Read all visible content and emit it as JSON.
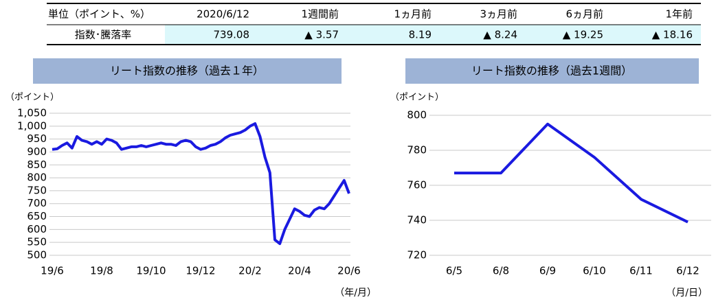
{
  "table": {
    "header": [
      "単位（ポイント、%）",
      "2020/6/12",
      "1週間前",
      "1ヵ月前",
      "3ヵ月前",
      "6ヵ月前",
      "1年前"
    ],
    "rows": [
      [
        "指数･騰落率",
        "739.08",
        "▲ 3.57",
        "8.19",
        "▲ 8.24",
        "▲ 19.25",
        "▲ 18.16"
      ]
    ]
  },
  "chart_data": [
    {
      "type": "line",
      "title": "リート指数の推移（過去１年）",
      "y_label": "（ポイント）",
      "x_label": "（年/月）",
      "color": "#1a1ae0",
      "grid": true,
      "categories": [
        "19/6",
        null,
        null,
        null,
        null,
        null,
        null,
        null,
        null,
        null,
        "19/8",
        null,
        null,
        null,
        null,
        null,
        null,
        null,
        null,
        null,
        "19/10",
        null,
        null,
        null,
        null,
        null,
        null,
        null,
        null,
        null,
        "19/12",
        null,
        null,
        null,
        null,
        null,
        null,
        null,
        null,
        null,
        "20/2",
        null,
        null,
        null,
        null,
        null,
        null,
        null,
        null,
        null,
        "20/4",
        null,
        null,
        null,
        null,
        null,
        null,
        null,
        null,
        null,
        "20/6"
      ],
      "values": [
        910,
        912,
        925,
        935,
        915,
        960,
        945,
        940,
        930,
        940,
        930,
        950,
        945,
        935,
        910,
        915,
        920,
        920,
        925,
        920,
        925,
        930,
        935,
        930,
        930,
        925,
        940,
        945,
        940,
        920,
        910,
        915,
        925,
        930,
        940,
        955,
        965,
        970,
        975,
        985,
        1000,
        1010,
        960,
        880,
        820,
        560,
        545,
        600,
        640,
        680,
        670,
        655,
        650,
        675,
        685,
        680,
        700,
        730,
        760,
        790,
        739
      ],
      "ylim": [
        500,
        1050
      ],
      "yticks": [
        500,
        550,
        600,
        650,
        700,
        750,
        800,
        850,
        900,
        950,
        {
          "value": 1000,
          "label": "1,000"
        },
        {
          "value": 1050,
          "label": "1,050"
        }
      ]
    },
    {
      "type": "line",
      "title": "リート指数の推移（過去1週間）",
      "y_label": "（ポイント）",
      "x_label": "（月/日）",
      "color": "#1a1ae0",
      "grid": true,
      "categories": [
        "6/5",
        "6/8",
        "6/9",
        "6/10",
        "6/11",
        "6/12"
      ],
      "values": [
        767,
        767,
        795,
        776,
        752,
        739
      ],
      "ylim": [
        720,
        800
      ],
      "yticks": [
        720,
        740,
        760,
        780,
        800
      ]
    }
  ]
}
